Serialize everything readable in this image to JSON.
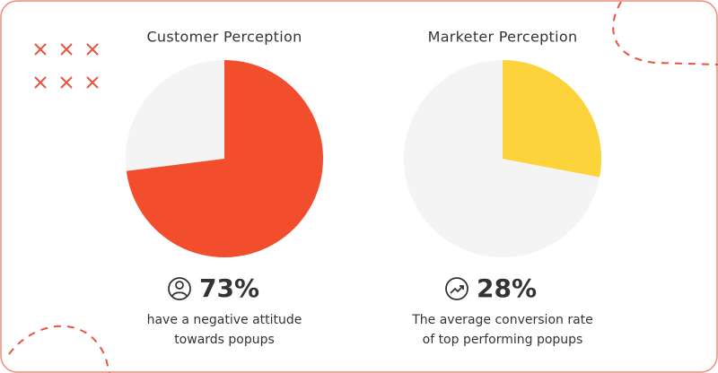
{
  "chart_data": [
    {
      "type": "pie",
      "title": "Customer Perception",
      "values": [
        73
      ],
      "value_labels": [
        "73%"
      ],
      "color": "#f24e2e",
      "caption": [
        "have a negative attitude",
        "towards popups"
      ]
    },
    {
      "type": "pie",
      "title": "Marketer Perception",
      "values": [
        28
      ],
      "value_labels": [
        "28%"
      ],
      "color": "#fdd33b",
      "caption": [
        "The average conversion rate",
        "of top performing popups"
      ]
    }
  ]
}
